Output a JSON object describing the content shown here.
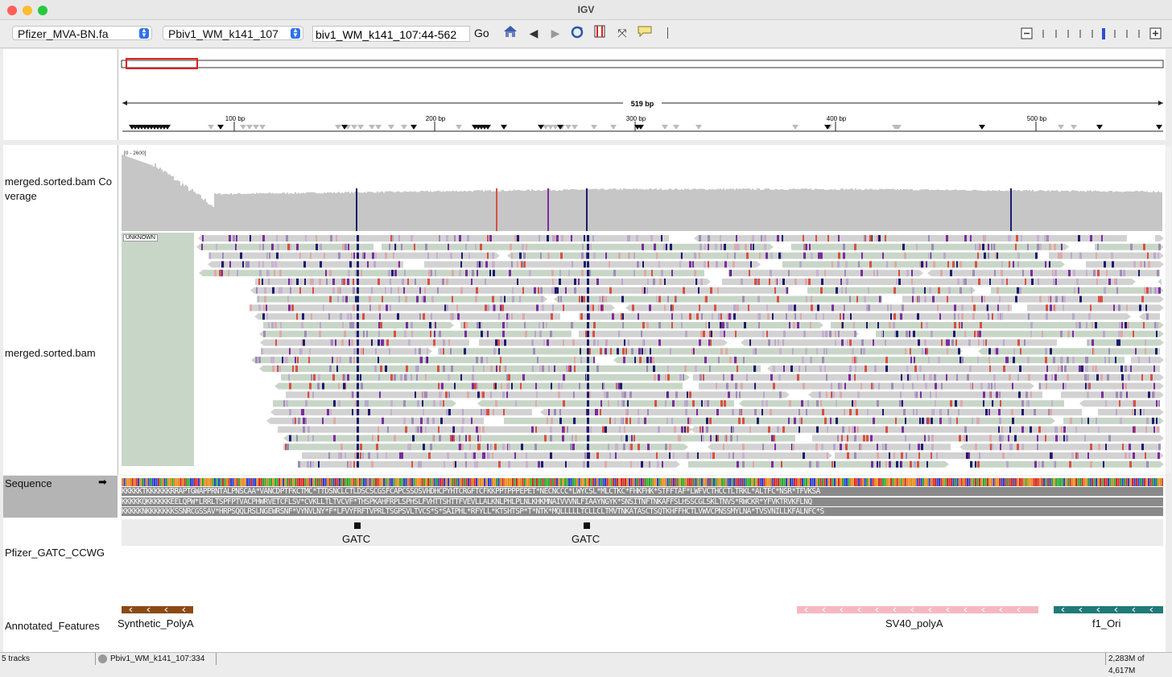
{
  "window": {
    "title": "IGV"
  },
  "toolbar": {
    "genome": "Pfizer_MVA-BN.fa",
    "chromosome": "Pbiv1_WM_k141_107",
    "locus": "biv1_WM_k141_107:44-562",
    "go_label": "Go"
  },
  "ruler": {
    "span_label": "519 bp",
    "ticks": [
      "100 bp",
      "200 bp",
      "300 bp",
      "400 bp",
      "500 bp"
    ]
  },
  "tracks": {
    "coverage_label_1": "merged.sorted.bam Co",
    "coverage_label_2": "verage",
    "coverage_range": "[0 - 2600]",
    "alignment_label": "merged.sorted.bam",
    "alignment_group": "UNKNOWN",
    "sequence_label": "Sequence",
    "sequence_arrow": "➡",
    "motif_label": "Pfizer_GATC_CCWG",
    "annotation_label": "Annotated_Features"
  },
  "sequence": {
    "frame1": "KKKKKTKKKKKKRRAPTGWAPPRNTALPNSCAA*VANCDPTFKCTMC*TTDSNCLCTLDSCSCGSFCAPCSSOSVHDHCPYHTCRGFTCFKKPPTPPPEPET*NECNCCC*LWYCSL*MLCTKC*FHKFHK*STFFTAF*LWFVCTHCCTLTRKL*ALTFC*NSR*TFVKSA",
    "frame2": "KKKKKQKKKKKKEELQPW*LRRLTSPFPTVACPHWRVETCFLSV*CVKLLTLTVCVF*THSPKAHFRPLSPHSLFVHTTSHTTFVEVLLALKNLPHLPLNLKHKMNAIVVVNLFIAAYNGYK*SNSITNFTNKAFFSLHSSCGLSKLTNVS*RWCKR*YFVKTRVKFLNQ",
    "frame3": "KKKKKNKKKKKKKSSNRCGSSAV*HRPSQQLRSLNGEWRSNF*VYNVLNY*F*LFVYFRFTVPRLTSGPSVLTVCS*S*SAIPHL*RFYLL*KTSHTSP*T*NTK*MQLLLLLTCLLCLTMVTNKATASCTSQTKHFFHCTLVWVCPNSSMYLNA*TVSVNILLKFALNFC*S"
  },
  "features": {
    "motif1": "GATC",
    "motif2": "GATC",
    "feat1": "Synthetic_PolyA",
    "feat2": "SV40_polyA",
    "feat3": "f1_Ori"
  },
  "colors": {
    "coverage": "#8c8c8c",
    "read": "#d2d2d2",
    "read_soft": "#c8d6c8",
    "mismatch_purple": "#7a2c9e",
    "mismatch_navy": "#1c1a6e",
    "mismatch_red": "#d85040",
    "polyA": "#8b4a14",
    "sv40": "#f5b8c0",
    "f1ori": "#1f7a78",
    "stop": "#e02020",
    "start": "#3cc23c"
  },
  "status": {
    "tracks": "5 tracks",
    "position": "Pbiv1_WM_k141_107:334",
    "memory": "2,283M of 4,617M"
  }
}
